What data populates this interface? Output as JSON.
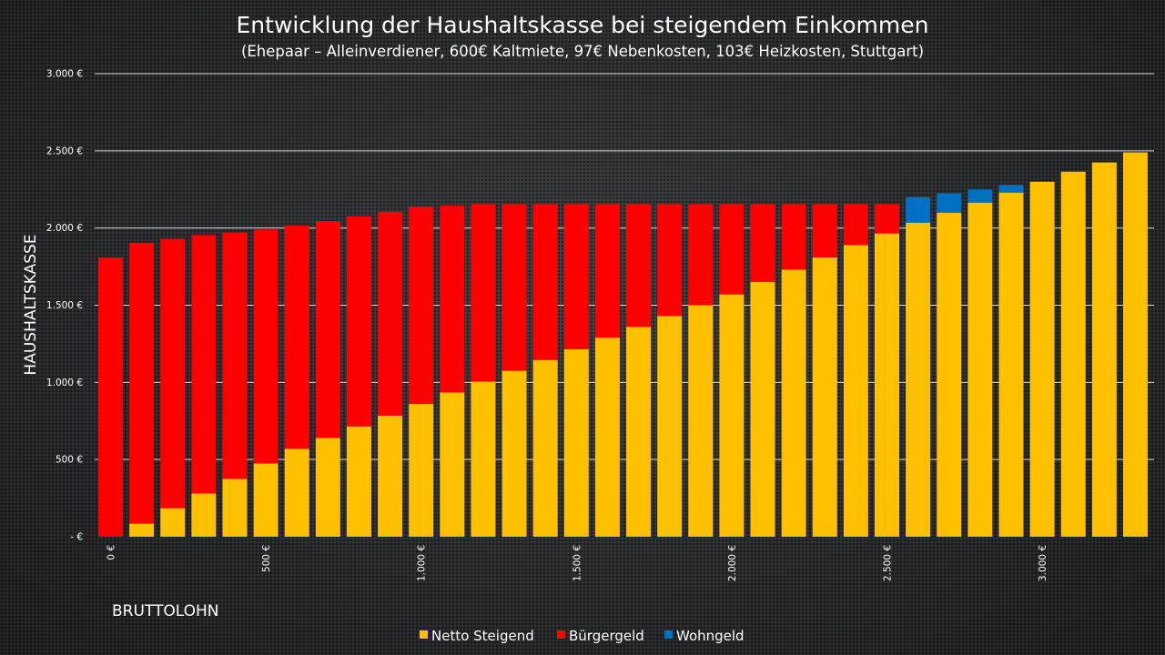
{
  "chart_data": {
    "type": "bar",
    "stacked": true,
    "title": "Entwicklung der Haushaltskasse  bei steigendem Einkommen",
    "subtitle": "(Ehepaar – Alleinverdiener, 600€ Kaltmiete, 97€ Nebenkosten, 103€ Heizkosten, Stuttgart)",
    "xlabel": "BRUTTOLOHN",
    "ylabel": "HAUSHALTSKASSE",
    "ylim": [
      0,
      3000
    ],
    "y_ticks": [
      {
        "value": 0,
        "label": "- €"
      },
      {
        "value": 500,
        "label": "500 €"
      },
      {
        "value": 1000,
        "label": "1.000 €"
      },
      {
        "value": 1500,
        "label": "1.500 €"
      },
      {
        "value": 2000,
        "label": "2.000 €"
      },
      {
        "value": 2500,
        "label": "2.500 €"
      },
      {
        "value": 3000,
        "label": "3.000 €"
      }
    ],
    "x_tick_labels": [
      "0 €",
      "500 €",
      "1.000 €",
      "1.500 €",
      "2.000 €",
      "2.500 €",
      "3.000 €"
    ],
    "x_tick_category_index": [
      0,
      5,
      10,
      15,
      20,
      25,
      30
    ],
    "categories": [
      0,
      100,
      200,
      300,
      400,
      500,
      600,
      700,
      800,
      900,
      1000,
      1100,
      1200,
      1300,
      1400,
      1500,
      1600,
      1700,
      1800,
      1900,
      2000,
      2100,
      2200,
      2300,
      2400,
      2500,
      2600,
      2700,
      2800,
      2900,
      3000,
      3100,
      3200,
      3300
    ],
    "series": [
      {
        "name": "Netto Steigend",
        "color": "#FFC000",
        "values": [
          0,
          85,
          185,
          280,
          375,
          475,
          570,
          640,
          715,
          785,
          860,
          935,
          1005,
          1075,
          1145,
          1215,
          1290,
          1360,
          1430,
          1500,
          1570,
          1650,
          1730,
          1810,
          1890,
          1965,
          2035,
          2100,
          2165,
          2230,
          2300,
          2365,
          2425,
          2490
        ]
      },
      {
        "name": "Bürgergeld",
        "color": "#FF0000",
        "values": [
          1810,
          1820,
          1745,
          1675,
          1595,
          1515,
          1445,
          1405,
          1360,
          1320,
          1280,
          1210,
          1150,
          1080,
          1010,
          940,
          865,
          795,
          725,
          655,
          585,
          505,
          425,
          345,
          265,
          190,
          0,
          0,
          0,
          0,
          0,
          0,
          0,
          0
        ]
      },
      {
        "name": "Wohngeld",
        "color": "#0070C0",
        "values": [
          0,
          0,
          0,
          0,
          0,
          0,
          0,
          0,
          0,
          0,
          0,
          0,
          0,
          0,
          0,
          0,
          0,
          0,
          0,
          0,
          0,
          0,
          0,
          0,
          0,
          0,
          165,
          125,
          85,
          50,
          0,
          0,
          0,
          0
        ]
      }
    ],
    "grid": true,
    "legend_position": "bottom"
  }
}
